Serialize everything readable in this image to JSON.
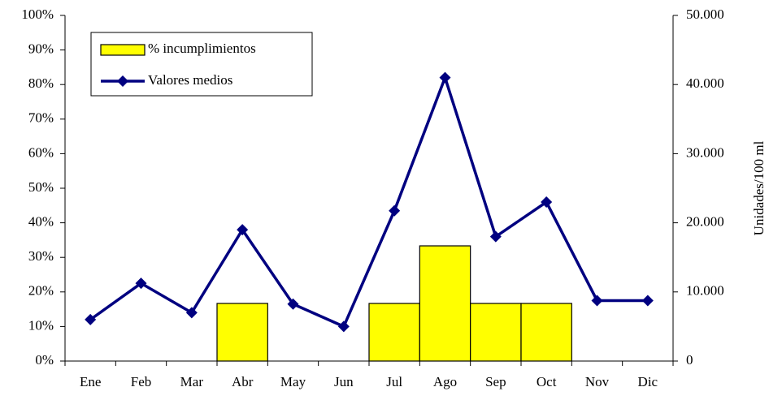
{
  "chart_data": {
    "type": "bar_line",
    "categories": [
      "Ene",
      "Feb",
      "Mar",
      "Abr",
      "May",
      "Jun",
      "Jul",
      "Ago",
      "Sep",
      "Oct",
      "Nov",
      "Dic"
    ],
    "series": [
      {
        "name": "% incumplimientos",
        "type": "bar",
        "color": "#ffff00",
        "values": [
          0,
          0,
          0,
          16.67,
          0,
          0,
          16.67,
          33.33,
          16.67,
          16.67,
          0,
          0
        ]
      },
      {
        "name": "Valores medios",
        "type": "line",
        "axis": "y2",
        "color": "#000080",
        "values": [
          6000,
          11250,
          7000,
          19000,
          8250,
          5000,
          21750,
          41000,
          18000,
          23000,
          8750,
          8750
        ]
      }
    ],
    "ylim": [
      0,
      100
    ],
    "yticks": [
      {
        "value": 0,
        "label": "0%"
      },
      {
        "value": 10,
        "label": "10%"
      },
      {
        "value": 20,
        "label": "20%"
      },
      {
        "value": 30,
        "label": "30%"
      },
      {
        "value": 40,
        "label": "40%"
      },
      {
        "value": 50,
        "label": "50%"
      },
      {
        "value": 60,
        "label": "60%"
      },
      {
        "value": 70,
        "label": "70%"
      },
      {
        "value": 80,
        "label": "80%"
      },
      {
        "value": 90,
        "label": "90%"
      },
      {
        "value": 100,
        "label": "100%"
      }
    ],
    "y2lim": [
      0,
      50000
    ],
    "y2ticks": [
      0,
      {
        "value": 10000,
        "label": "10.000"
      },
      {
        "value": 20000,
        "label": "20.000"
      },
      {
        "value": 30000,
        "label": "30.000"
      },
      {
        "value": 40000,
        "label": "40.000"
      },
      {
        "value": 50000,
        "label": "50.000"
      }
    ],
    "y2label": "Unidades/100 ml",
    "legend": "top-left"
  }
}
